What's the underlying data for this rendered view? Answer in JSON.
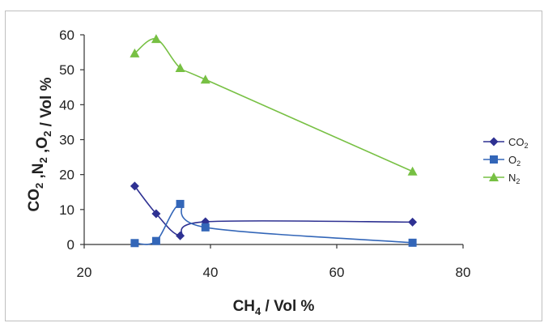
{
  "chart_data": {
    "type": "scatter",
    "title": "",
    "xlabel": {
      "main": "CH",
      "sub": "4",
      "rest": " / Vol %"
    },
    "ylabel": {
      "parts": [
        {
          "main": "CO",
          "sub": "2"
        },
        {
          "main": " ,N",
          "sub": "2"
        },
        {
          "main": " ,O",
          "sub": "2"
        },
        {
          "main": "  / Vol %",
          "sub": ""
        }
      ]
    },
    "xlim": [
      20,
      80
    ],
    "ylim": [
      0,
      60
    ],
    "xticks": [
      20,
      40,
      60,
      80
    ],
    "yticks": [
      0,
      10,
      20,
      30,
      40,
      50,
      60
    ],
    "grid": false,
    "legend_position": "right",
    "series": [
      {
        "name": "CO",
        "name_sub": "2",
        "marker": "diamond",
        "color": "#2e3192",
        "x": [
          28,
          31.4,
          35.2,
          39.2,
          72
        ],
        "y": [
          16.7,
          8.8,
          2.5,
          6.5,
          6.4
        ]
      },
      {
        "name": "O",
        "name_sub": "2",
        "marker": "square",
        "color": "#3366b8",
        "x": [
          28,
          31.4,
          35.2,
          39.2,
          72
        ],
        "y": [
          0.4,
          1.0,
          11.6,
          4.9,
          0.5
        ]
      },
      {
        "name": "N",
        "name_sub": "2",
        "marker": "triangle",
        "color": "#77c043",
        "x": [
          28,
          31.4,
          35.2,
          39.2,
          72
        ],
        "y": [
          54.7,
          58.8,
          50.5,
          47.2,
          20.9
        ]
      }
    ]
  }
}
